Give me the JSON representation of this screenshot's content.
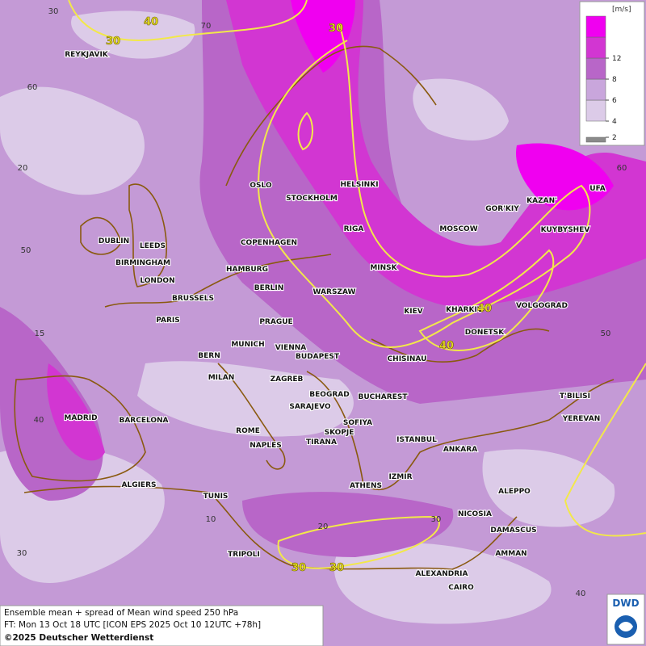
{
  "map": {
    "cities": [
      "REYKJAVIK",
      "OSLO",
      "STOCKHOLM",
      "HELSINKI",
      "RIGA",
      "MOSCOW",
      "GOR'KIY",
      "KAZAN'",
      "UFA",
      "KUYBYSHEV",
      "DUBLIN",
      "LEEDS",
      "BIRMINGHAM",
      "LONDON",
      "COPENHAGEN",
      "HAMBURG",
      "BERLIN",
      "MINSK",
      "WARSZAW",
      "KIEV",
      "KHARKIV",
      "VOLGOGRAD",
      "BRUSSELS",
      "PARIS",
      "PRAGUE",
      "DONETSK",
      "MUNICH",
      "VIENNA",
      "BUDAPEST",
      "BERN",
      "CHISINAU",
      "MILAN",
      "ZAGREB",
      "BEOGRAD",
      "BUCHAREST",
      "T'BILISI",
      "SARAJEVO",
      "MADRID",
      "BARCELONA",
      "ROME",
      "SOFIYA",
      "SKOPJE",
      "YEREVAN",
      "NAPLES",
      "TIRANA",
      "ISTANBUL",
      "ANKARA",
      "ALGIERS",
      "ATHENS",
      "IZMIR",
      "ALEPPO",
      "TUNIS",
      "NICOSIA",
      "DAMASCUS",
      "TRIPOLI",
      "AMMAN",
      "ALEXANDRIA",
      "CAIRO"
    ],
    "contour_labels": [
      40,
      30,
      30,
      40,
      40,
      30,
      30
    ],
    "graticule_labels": [
      30,
      70,
      60,
      20,
      60,
      50,
      50,
      15,
      40,
      10,
      20,
      30,
      30,
      40
    ]
  },
  "legend": {
    "unit": "[m/s]",
    "ticks": [
      2,
      4,
      6,
      8,
      12
    ],
    "colors": [
      "#8a8a8a",
      "#dccbe8",
      "#c9a6dc",
      "#b866c8",
      "#d236d2",
      "#f000f0"
    ]
  },
  "footer": {
    "lines": [
      "Ensemble mean + spread of Mean wind speed 250 hPa",
      "FT: Mon 13 Oct 18 UTC [ICON EPS 2025 Oct 10 12UTC +78h]"
    ],
    "copyright": "©2025 Deutscher Wetterdienst"
  },
  "logo": "DWD"
}
